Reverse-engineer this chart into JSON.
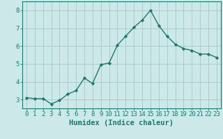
{
  "x": [
    0,
    1,
    2,
    3,
    4,
    5,
    6,
    7,
    8,
    9,
    10,
    11,
    12,
    13,
    14,
    15,
    16,
    17,
    18,
    19,
    20,
    21,
    22,
    23
  ],
  "y": [
    3.1,
    3.05,
    3.05,
    2.75,
    2.95,
    3.3,
    3.5,
    4.2,
    3.9,
    4.95,
    5.05,
    6.05,
    6.55,
    7.05,
    7.45,
    8.0,
    7.15,
    6.55,
    6.1,
    5.85,
    5.75,
    5.55,
    5.55,
    5.35
  ],
  "line_color": "#1a7a6e",
  "marker": "D",
  "marker_size": 2.2,
  "bg_color": "#cce8e8",
  "grid_color": "#aacccc",
  "ylim": [
    2.5,
    8.5
  ],
  "xlim": [
    -0.5,
    23.5
  ],
  "xlabel": "Humidex (Indice chaleur)",
  "yticks": [
    3,
    4,
    5,
    6,
    7,
    8
  ],
  "xticks": [
    0,
    1,
    2,
    3,
    4,
    5,
    6,
    7,
    8,
    9,
    10,
    11,
    12,
    13,
    14,
    15,
    16,
    17,
    18,
    19,
    20,
    21,
    22,
    23
  ],
  "tick_label_fontsize": 6.5,
  "xlabel_fontsize": 7.5,
  "linewidth": 1.0
}
